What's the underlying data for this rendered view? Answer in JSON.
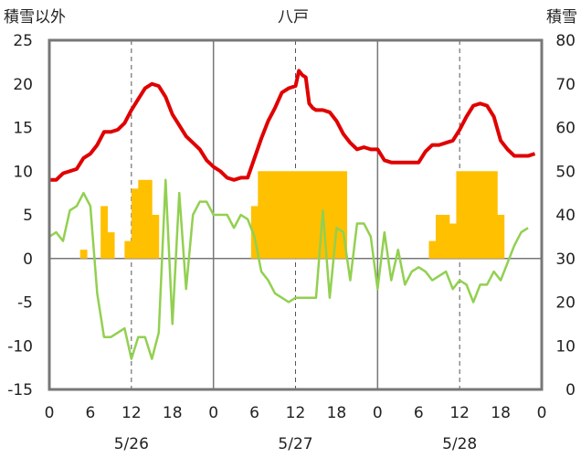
{
  "chart_data": {
    "type": "line",
    "title": "八戸",
    "ylabel_left": "積雪以外",
    "ylabel_right": "積雪",
    "y_left_range": [
      -15,
      25
    ],
    "y_left_ticks": [
      "25",
      "20",
      "15",
      "10",
      "5",
      "0",
      "-5",
      "-10",
      "-15"
    ],
    "y_right_range": [
      0,
      80
    ],
    "y_right_ticks": [
      "80",
      "70",
      "60",
      "50",
      "40",
      "30",
      "20",
      "10",
      "0"
    ],
    "x_range_hours": [
      0,
      72
    ],
    "x_tick_labels": [
      "0",
      "6",
      "12",
      "18",
      "0",
      "6",
      "12",
      "18",
      "0",
      "6",
      "12",
      "18",
      "0"
    ],
    "date_labels": [
      "5/26",
      "5/27",
      "5/28"
    ],
    "grid": "dashed verticals at 12:00, solid at day boundaries",
    "colors": {
      "snow": "#e00000",
      "precip": "#ffc000",
      "temp": "#92d050"
    },
    "series": [
      {
        "key": "snow",
        "axis": "right",
        "kind": "line",
        "points": [
          [
            0,
            48
          ],
          [
            0.5,
            48
          ],
          [
            1,
            48
          ],
          [
            2,
            49.5
          ],
          [
            3,
            50
          ],
          [
            4,
            50.5
          ],
          [
            5,
            53
          ],
          [
            6,
            54
          ],
          [
            7,
            56
          ],
          [
            8,
            59
          ],
          [
            9,
            59
          ],
          [
            10,
            59.5
          ],
          [
            11,
            61
          ],
          [
            12,
            64
          ],
          [
            13,
            66.5
          ],
          [
            14,
            69
          ],
          [
            15,
            70
          ],
          [
            16,
            69.5
          ],
          [
            17,
            67
          ],
          [
            18,
            63
          ],
          [
            19,
            60.5
          ],
          [
            20,
            58
          ],
          [
            21,
            56.5
          ],
          [
            22,
            55
          ],
          [
            23,
            52.5
          ],
          [
            24,
            51
          ],
          [
            25,
            50
          ],
          [
            26,
            48.5
          ],
          [
            27,
            48
          ],
          [
            28,
            48.5
          ],
          [
            29,
            48.5
          ],
          [
            30,
            53
          ],
          [
            31,
            57.5
          ],
          [
            32,
            61.5
          ],
          [
            33,
            64.5
          ],
          [
            34,
            68
          ],
          [
            35,
            69
          ],
          [
            36,
            69.5
          ],
          [
            36.5,
            73
          ],
          [
            37,
            72
          ],
          [
            37.5,
            71.5
          ],
          [
            38,
            65.5
          ],
          [
            38.5,
            64.5
          ],
          [
            39,
            64
          ],
          [
            40,
            64
          ],
          [
            41,
            63.5
          ],
          [
            42,
            61.5
          ],
          [
            43,
            58.5
          ],
          [
            44,
            56.5
          ],
          [
            45,
            55
          ],
          [
            46,
            55.5
          ],
          [
            47,
            55
          ],
          [
            48,
            55
          ],
          [
            49,
            52.5
          ],
          [
            50,
            52
          ],
          [
            51,
            52
          ],
          [
            52,
            52
          ],
          [
            53,
            52
          ],
          [
            54,
            52
          ],
          [
            55,
            54.5
          ],
          [
            56,
            56
          ],
          [
            57,
            56
          ],
          [
            58,
            56.5
          ],
          [
            59,
            57
          ],
          [
            60,
            59.5
          ],
          [
            61,
            62.5
          ],
          [
            62,
            65
          ],
          [
            63,
            65.5
          ],
          [
            64,
            65
          ],
          [
            65,
            62.5
          ],
          [
            66,
            57
          ],
          [
            67,
            55
          ],
          [
            68,
            53.5
          ],
          [
            69,
            53.5
          ],
          [
            70,
            53.5
          ],
          [
            71,
            54
          ]
        ]
      },
      {
        "key": "precip",
        "axis": "left",
        "kind": "bar",
        "bars": [
          [
            5,
            1
          ],
          [
            8,
            6
          ],
          [
            9,
            3
          ],
          [
            11.5,
            2
          ],
          [
            12.5,
            8
          ],
          [
            13.5,
            9
          ],
          [
            14.5,
            9
          ],
          [
            15.5,
            5
          ],
          [
            30,
            6
          ],
          [
            31,
            10
          ],
          [
            32,
            10
          ],
          [
            33,
            10
          ],
          [
            34,
            10
          ],
          [
            35,
            10
          ],
          [
            36,
            10
          ],
          [
            37,
            10
          ],
          [
            38,
            10
          ],
          [
            39,
            10
          ],
          [
            40,
            10
          ],
          [
            41,
            10
          ],
          [
            42,
            10
          ],
          [
            43,
            10
          ],
          [
            56,
            2
          ],
          [
            57,
            5
          ],
          [
            58,
            5
          ],
          [
            59,
            4
          ],
          [
            60,
            10
          ],
          [
            61,
            10
          ],
          [
            62,
            10
          ],
          [
            63,
            10
          ],
          [
            64,
            10
          ],
          [
            65,
            10
          ],
          [
            66,
            5
          ]
        ]
      },
      {
        "key": "temp",
        "axis": "left",
        "kind": "line",
        "points": [
          [
            0,
            2.5
          ],
          [
            1,
            3
          ],
          [
            2,
            2
          ],
          [
            3,
            5.5
          ],
          [
            4,
            6
          ],
          [
            5,
            7.5
          ],
          [
            6,
            6
          ],
          [
            7,
            -4
          ],
          [
            8,
            -9
          ],
          [
            9,
            -9
          ],
          [
            10,
            -8.5
          ],
          [
            11,
            -8
          ],
          [
            12,
            -11.5
          ],
          [
            13,
            -9
          ],
          [
            14,
            -9
          ],
          [
            15,
            -11.5
          ],
          [
            16,
            -8.5
          ],
          [
            17,
            9
          ],
          [
            18,
            -7.5
          ],
          [
            19,
            7.5
          ],
          [
            20,
            -3.5
          ],
          [
            21,
            5
          ],
          [
            22,
            6.5
          ],
          [
            23,
            6.5
          ],
          [
            24,
            5
          ],
          [
            25,
            5
          ],
          [
            26,
            5
          ],
          [
            27,
            3.5
          ],
          [
            28,
            5
          ],
          [
            29,
            4.5
          ],
          [
            30,
            2.5
          ],
          [
            31,
            -1.5
          ],
          [
            32,
            -2.5
          ],
          [
            33,
            -4
          ],
          [
            34,
            -4.5
          ],
          [
            35,
            -5
          ],
          [
            36,
            -4.5
          ],
          [
            37,
            -4.5
          ],
          [
            38,
            -4.5
          ],
          [
            39,
            -4.5
          ],
          [
            40,
            5.5
          ],
          [
            41,
            -4.5
          ],
          [
            42,
            3.5
          ],
          [
            43,
            3
          ],
          [
            44,
            -2.5
          ],
          [
            45,
            4
          ],
          [
            46,
            4
          ],
          [
            47,
            2.5
          ],
          [
            48,
            -3.5
          ],
          [
            49,
            3
          ],
          [
            50,
            -2.5
          ],
          [
            51,
            1
          ],
          [
            52,
            -3
          ],
          [
            53,
            -1.5
          ],
          [
            54,
            -1
          ],
          [
            55,
            -1.5
          ],
          [
            56,
            -2.5
          ],
          [
            57,
            -2
          ],
          [
            58,
            -1.5
          ],
          [
            59,
            -3.5
          ],
          [
            60,
            -2.5
          ],
          [
            61,
            -3
          ],
          [
            62,
            -5
          ],
          [
            63,
            -3
          ],
          [
            64,
            -3
          ],
          [
            65,
            -1.5
          ],
          [
            66,
            -2.5
          ],
          [
            67,
            -0.5
          ],
          [
            68,
            1.5
          ],
          [
            69,
            3
          ],
          [
            70,
            3.5
          ]
        ]
      }
    ]
  }
}
